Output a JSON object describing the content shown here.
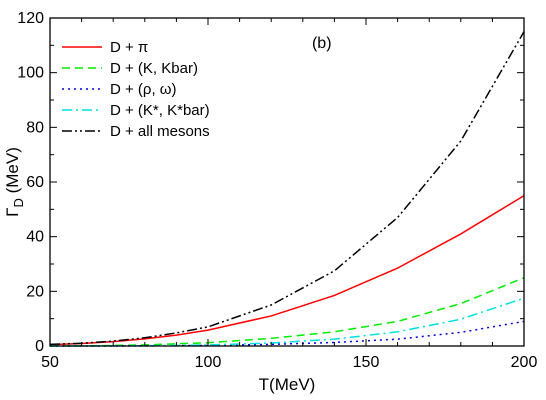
{
  "chart_data": {
    "type": "line",
    "annotation": "(b)",
    "xlabel": "T(MeV)",
    "ylabel_main": "Γ",
    "ylabel_sub": "D",
    "ylabel_unit": " (MeV)",
    "xlim": [
      50,
      200
    ],
    "ylim": [
      0,
      120
    ],
    "xticks": [
      50,
      100,
      150,
      200
    ],
    "yticks": [
      0,
      20,
      40,
      60,
      80,
      100,
      120
    ],
    "grid": false,
    "legend_position": "top-left",
    "series": [
      {
        "name": "D + π",
        "color": "#ff0000",
        "dash": "",
        "x": [
          50,
          60,
          70,
          80,
          90,
          100,
          120,
          140,
          160,
          180,
          200
        ],
        "y": [
          0.5,
          0.9,
          1.6,
          2.6,
          4.0,
          5.8,
          11.0,
          18.5,
          28.5,
          41.0,
          55.0
        ]
      },
      {
        "name": "D + (K, Kbar)",
        "color": "#00ee00",
        "dash": "8,5",
        "x": [
          50,
          60,
          70,
          80,
          90,
          100,
          120,
          140,
          160,
          180,
          200
        ],
        "y": [
          0.0,
          0.05,
          0.2,
          0.4,
          0.8,
          1.2,
          2.8,
          5.2,
          9.0,
          15.5,
          25.0
        ]
      },
      {
        "name": "D + (ρ, ω)",
        "color": "#0000dd",
        "dash": "2,4",
        "x": [
          50,
          60,
          70,
          80,
          90,
          100,
          120,
          140,
          160,
          180,
          200
        ],
        "y": [
          0.0,
          0.0,
          0.0,
          0.05,
          0.1,
          0.2,
          0.6,
          1.3,
          2.5,
          5.0,
          9.0
        ]
      },
      {
        "name": "D + (K*, K*bar)",
        "color": "#00e0e0",
        "dash": "10,4,2,4",
        "x": [
          50,
          60,
          70,
          80,
          90,
          100,
          120,
          140,
          160,
          180,
          200
        ],
        "y": [
          0.0,
          0.0,
          0.05,
          0.1,
          0.2,
          0.4,
          1.1,
          2.5,
          5.2,
          9.8,
          17.5
        ]
      },
      {
        "name": "D + all mesons",
        "color": "#000000",
        "dash": "10,3,2,3,2,3",
        "x": [
          50,
          60,
          70,
          80,
          90,
          100,
          120,
          140,
          160,
          180,
          200
        ],
        "y": [
          0.6,
          1.0,
          1.8,
          3.0,
          4.8,
          7.0,
          15.0,
          27.5,
          47.0,
          75.0,
          115.0
        ]
      }
    ]
  }
}
